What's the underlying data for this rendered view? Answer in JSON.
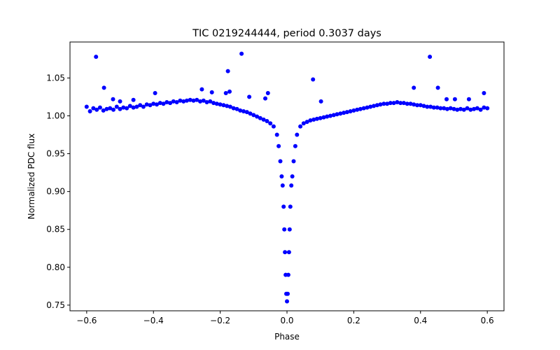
{
  "chart_data": {
    "type": "scatter",
    "title": "TIC 0219244444, period 0.3037 days",
    "xlabel": "Phase",
    "ylabel": "Normalized PDC flux",
    "xlim": [
      -0.65,
      0.65
    ],
    "ylim": [
      0.7425,
      1.0975
    ],
    "xticks": [
      -0.6,
      -0.4,
      -0.2,
      0.0,
      0.2,
      0.4,
      0.6
    ],
    "xtick_labels": [
      "−0.6",
      "−0.4",
      "−0.2",
      "0.0",
      "0.2",
      "0.4",
      "0.6"
    ],
    "yticks": [
      0.75,
      0.8,
      0.85,
      0.9,
      0.95,
      1.0,
      1.05
    ],
    "ytick_labels": [
      "0.75",
      "0.80",
      "0.85",
      "0.90",
      "0.95",
      "1.00",
      "1.05"
    ],
    "grid": false,
    "marker_color": "#0000ff",
    "series": [
      {
        "points": [
          [
            -0.6,
            1.012
          ],
          [
            -0.59,
            1.006
          ],
          [
            -0.58,
            1.01
          ],
          [
            -0.57,
            1.008
          ],
          [
            -0.56,
            1.011
          ],
          [
            -0.55,
            1.007
          ],
          [
            -0.54,
            1.009
          ],
          [
            -0.53,
            1.01
          ],
          [
            -0.52,
            1.008
          ],
          [
            -0.51,
            1.012
          ],
          [
            -0.5,
            1.009
          ],
          [
            -0.49,
            1.011
          ],
          [
            -0.48,
            1.01
          ],
          [
            -0.47,
            1.013
          ],
          [
            -0.46,
            1.011
          ],
          [
            -0.45,
            1.012
          ],
          [
            -0.44,
            1.014
          ],
          [
            -0.43,
            1.012
          ],
          [
            -0.42,
            1.015
          ],
          [
            -0.41,
            1.014
          ],
          [
            -0.4,
            1.016
          ],
          [
            -0.39,
            1.015
          ],
          [
            -0.38,
            1.017
          ],
          [
            -0.37,
            1.016
          ],
          [
            -0.36,
            1.018
          ],
          [
            -0.35,
            1.017
          ],
          [
            -0.34,
            1.019
          ],
          [
            -0.33,
            1.018
          ],
          [
            -0.32,
            1.02
          ],
          [
            -0.31,
            1.019
          ],
          [
            -0.3,
            1.02
          ],
          [
            -0.29,
            1.021
          ],
          [
            -0.28,
            1.02
          ],
          [
            -0.27,
            1.021
          ],
          [
            -0.26,
            1.019
          ],
          [
            -0.25,
            1.02
          ],
          [
            -0.24,
            1.018
          ],
          [
            -0.23,
            1.019
          ],
          [
            -0.22,
            1.017
          ],
          [
            -0.21,
            1.016
          ],
          [
            -0.2,
            1.015
          ],
          [
            -0.19,
            1.014
          ],
          [
            -0.18,
            1.013
          ],
          [
            -0.17,
            1.012
          ],
          [
            -0.16,
            1.01
          ],
          [
            -0.15,
            1.009
          ],
          [
            -0.14,
            1.007
          ],
          [
            -0.13,
            1.006
          ],
          [
            -0.12,
            1.005
          ],
          [
            -0.11,
            1.003
          ],
          [
            -0.1,
            1.001
          ],
          [
            -0.09,
            0.999
          ],
          [
            -0.08,
            0.997
          ],
          [
            -0.07,
            0.995
          ],
          [
            -0.06,
            0.993
          ],
          [
            -0.05,
            0.99
          ],
          [
            -0.04,
            0.986
          ],
          [
            -0.03,
            0.975
          ],
          [
            -0.025,
            0.96
          ],
          [
            -0.02,
            0.94
          ],
          [
            -0.016,
            0.92
          ],
          [
            -0.013,
            0.908
          ],
          [
            -0.01,
            0.88
          ],
          [
            -0.008,
            0.85
          ],
          [
            -0.006,
            0.82
          ],
          [
            -0.004,
            0.79
          ],
          [
            -0.002,
            0.765
          ],
          [
            0.0,
            0.755
          ],
          [
            0.002,
            0.765
          ],
          [
            0.004,
            0.79
          ],
          [
            0.006,
            0.82
          ],
          [
            0.008,
            0.85
          ],
          [
            0.01,
            0.88
          ],
          [
            0.013,
            0.908
          ],
          [
            0.016,
            0.92
          ],
          [
            0.02,
            0.94
          ],
          [
            0.025,
            0.96
          ],
          [
            0.03,
            0.975
          ],
          [
            0.04,
            0.986
          ],
          [
            0.05,
            0.99
          ],
          [
            0.06,
            0.992
          ],
          [
            0.07,
            0.994
          ],
          [
            0.08,
            0.995
          ],
          [
            0.09,
            0.996
          ],
          [
            0.1,
            0.997
          ],
          [
            0.11,
            0.998
          ],
          [
            0.12,
            0.999
          ],
          [
            0.13,
            1.0
          ],
          [
            0.14,
            1.001
          ],
          [
            0.15,
            1.002
          ],
          [
            0.16,
            1.003
          ],
          [
            0.17,
            1.004
          ],
          [
            0.18,
            1.005
          ],
          [
            0.19,
            1.006
          ],
          [
            0.2,
            1.007
          ],
          [
            0.21,
            1.008
          ],
          [
            0.22,
            1.009
          ],
          [
            0.23,
            1.01
          ],
          [
            0.24,
            1.011
          ],
          [
            0.25,
            1.012
          ],
          [
            0.26,
            1.013
          ],
          [
            0.27,
            1.014
          ],
          [
            0.28,
            1.015
          ],
          [
            0.29,
            1.016
          ],
          [
            0.3,
            1.016
          ],
          [
            0.31,
            1.017
          ],
          [
            0.32,
            1.017
          ],
          [
            0.33,
            1.018
          ],
          [
            0.34,
            1.017
          ],
          [
            0.35,
            1.017
          ],
          [
            0.36,
            1.016
          ],
          [
            0.37,
            1.016
          ],
          [
            0.38,
            1.015
          ],
          [
            0.39,
            1.014
          ],
          [
            0.4,
            1.014
          ],
          [
            0.41,
            1.013
          ],
          [
            0.42,
            1.012
          ],
          [
            0.43,
            1.012
          ],
          [
            0.44,
            1.011
          ],
          [
            0.45,
            1.011
          ],
          [
            0.46,
            1.01
          ],
          [
            0.47,
            1.01
          ],
          [
            0.48,
            1.009
          ],
          [
            0.49,
            1.01
          ],
          [
            0.5,
            1.009
          ],
          [
            0.51,
            1.008
          ],
          [
            0.52,
            1.009
          ],
          [
            0.53,
            1.008
          ],
          [
            0.54,
            1.01
          ],
          [
            0.55,
            1.008
          ],
          [
            0.56,
            1.009
          ],
          [
            0.57,
            1.01
          ],
          [
            0.58,
            1.008
          ],
          [
            0.59,
            1.011
          ],
          [
            0.6,
            1.01
          ],
          [
            -0.572,
            1.078
          ],
          [
            -0.548,
            1.037
          ],
          [
            -0.521,
            1.022
          ],
          [
            -0.5,
            1.019
          ],
          [
            -0.46,
            1.021
          ],
          [
            -0.395,
            1.03
          ],
          [
            -0.255,
            1.035
          ],
          [
            -0.225,
            1.031
          ],
          [
            -0.183,
            1.03
          ],
          [
            -0.177,
            1.059
          ],
          [
            -0.172,
            1.032
          ],
          [
            -0.136,
            1.082
          ],
          [
            -0.113,
            1.025
          ],
          [
            -0.065,
            1.023
          ],
          [
            -0.057,
            1.03
          ],
          [
            0.078,
            1.048
          ],
          [
            0.102,
            1.019
          ],
          [
            0.38,
            1.037
          ],
          [
            0.428,
            1.078
          ],
          [
            0.452,
            1.037
          ],
          [
            0.478,
            1.022
          ],
          [
            0.503,
            1.022
          ],
          [
            0.545,
            1.022
          ],
          [
            0.59,
            1.03
          ]
        ]
      }
    ]
  }
}
